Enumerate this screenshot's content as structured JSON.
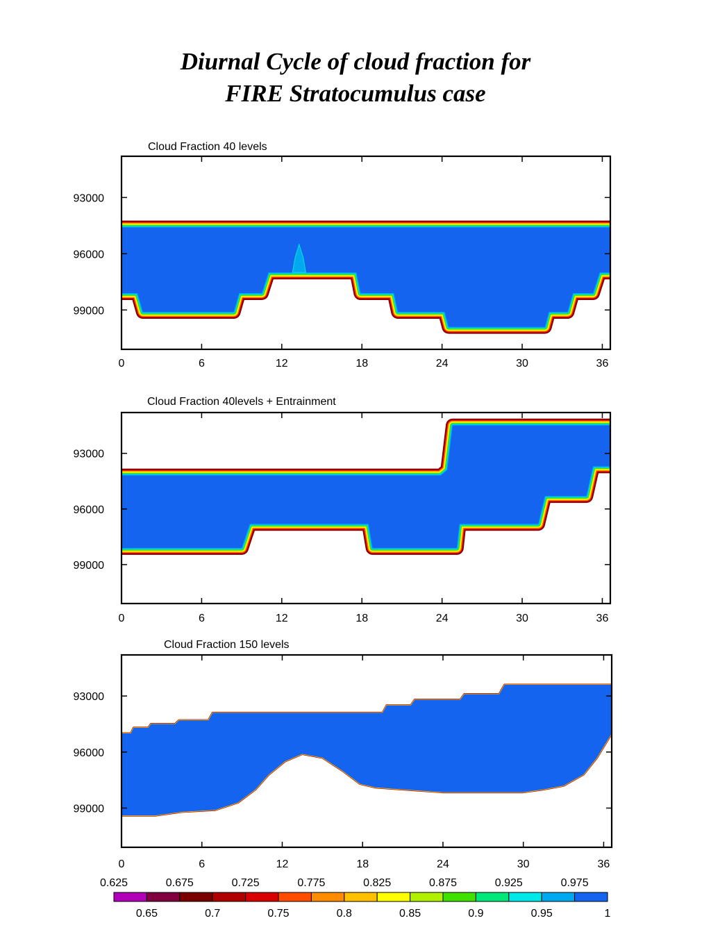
{
  "title_lines": [
    "Diurnal Cycle of cloud fraction for",
    "FIRE Stratocumulus case"
  ],
  "chart_data": [
    {
      "type": "heatmap",
      "title": "Cloud Fraction 40 levels",
      "x_ticks": [
        0,
        6,
        12,
        18,
        24,
        30,
        36
      ],
      "y_ticks": [
        93000,
        96000,
        99000
      ],
      "xlim": [
        0,
        36.6
      ],
      "ylim": [
        90800,
        101100
      ],
      "y_inverted": true,
      "cloud_top": [
        [
          0,
          94600
        ],
        [
          36.6,
          94600
        ]
      ],
      "cloud_base": [
        [
          0,
          98100
        ],
        [
          1.2,
          98100
        ],
        [
          1.6,
          99100
        ],
        [
          8.4,
          99100
        ],
        [
          8.8,
          98100
        ],
        [
          10.5,
          98100
        ],
        [
          11,
          97000
        ],
        [
          17.6,
          97000
        ],
        [
          17.9,
          98100
        ],
        [
          20.4,
          98100
        ],
        [
          20.7,
          99100
        ],
        [
          24.2,
          99100
        ],
        [
          24.5,
          99900
        ],
        [
          31.7,
          99900
        ],
        [
          32,
          99100
        ],
        [
          33.4,
          99100
        ],
        [
          33.8,
          98100
        ],
        [
          35.3,
          98100
        ],
        [
          35.8,
          97000
        ],
        [
          36.6,
          97000
        ]
      ],
      "bump": [
        [
          12.8,
          97000
        ],
        [
          13,
          96200
        ],
        [
          13.3,
          95500
        ],
        [
          13.6,
          96200
        ],
        [
          13.8,
          97000
        ]
      ]
    },
    {
      "type": "heatmap",
      "title": "Cloud Fraction 40levels + Entrainment",
      "x_ticks": [
        0,
        6,
        12,
        18,
        24,
        30,
        36
      ],
      "y_ticks": [
        93000,
        96000,
        99000
      ],
      "xlim": [
        0,
        36.6
      ],
      "ylim": [
        90800,
        101100
      ],
      "y_inverted": true,
      "cloud_top": [
        [
          0,
          94200
        ],
        [
          23.9,
          94200
        ],
        [
          24.4,
          93900
        ],
        [
          24.8,
          91500
        ],
        [
          36.6,
          91500
        ]
      ],
      "cloud_base": [
        [
          0,
          98100
        ],
        [
          9,
          98100
        ],
        [
          9.6,
          96800
        ],
        [
          18.5,
          96800
        ],
        [
          18.8,
          98100
        ],
        [
          25.1,
          98100
        ],
        [
          25.3,
          96800
        ],
        [
          31.2,
          96800
        ],
        [
          31.7,
          95300
        ],
        [
          34.8,
          95300
        ],
        [
          35.3,
          93700
        ],
        [
          36.6,
          93700
        ]
      ]
    },
    {
      "type": "heatmap",
      "title": "Cloud Fraction 150 levels",
      "x_ticks": [
        0,
        6,
        12,
        18,
        24,
        30,
        36
      ],
      "y_ticks": [
        93000,
        96000,
        99000
      ],
      "xlim": [
        0,
        36.6
      ],
      "ylim": [
        90800,
        101100
      ],
      "y_inverted": true,
      "cloud_top": [
        [
          0,
          95000
        ],
        [
          0.7,
          95000
        ],
        [
          0.9,
          94700
        ],
        [
          2,
          94700
        ],
        [
          2.2,
          94500
        ],
        [
          4,
          94500
        ],
        [
          4.3,
          94300
        ],
        [
          6.5,
          94300
        ],
        [
          6.8,
          93900
        ],
        [
          19.5,
          93900
        ],
        [
          19.8,
          93500
        ],
        [
          21.6,
          93500
        ],
        [
          21.9,
          93200
        ],
        [
          25.3,
          93200
        ],
        [
          25.6,
          92900
        ],
        [
          28.2,
          92900
        ],
        [
          28.6,
          92400
        ],
        [
          36.6,
          92400
        ]
      ],
      "cloud_base": [
        [
          0,
          99400
        ],
        [
          2.5,
          99400
        ],
        [
          4.5,
          99200
        ],
        [
          7,
          99100
        ],
        [
          8.7,
          98700
        ],
        [
          10,
          98000
        ],
        [
          11,
          97200
        ],
        [
          12.2,
          96500
        ],
        [
          13.5,
          96100
        ],
        [
          15,
          96300
        ],
        [
          16.5,
          97000
        ],
        [
          17.8,
          97700
        ],
        [
          19,
          97900
        ],
        [
          21,
          98000
        ],
        [
          24,
          98150
        ],
        [
          27,
          98150
        ],
        [
          30,
          98150
        ],
        [
          31.5,
          98000
        ],
        [
          33,
          97800
        ],
        [
          34.5,
          97200
        ],
        [
          35.5,
          96300
        ],
        [
          36.6,
          95000
        ]
      ]
    }
  ],
  "colorbar": {
    "top_labels": [
      "0.625",
      "0.675",
      "0.725",
      "0.775",
      "0.825",
      "0.875",
      "0.925",
      "0.975"
    ],
    "bottom_labels": [
      "0.65",
      "0.7",
      "0.75",
      "0.8",
      "0.85",
      "0.9",
      "0.95",
      "1"
    ],
    "colors": [
      "#b000b8",
      "#800040",
      "#7a0000",
      "#b00000",
      "#d80000",
      "#ff4d00",
      "#ff8c00",
      "#ffc000",
      "#ffff00",
      "#b0f000",
      "#40e000",
      "#00e87a",
      "#00e8e8",
      "#00a8f0",
      "#1464ef"
    ]
  }
}
